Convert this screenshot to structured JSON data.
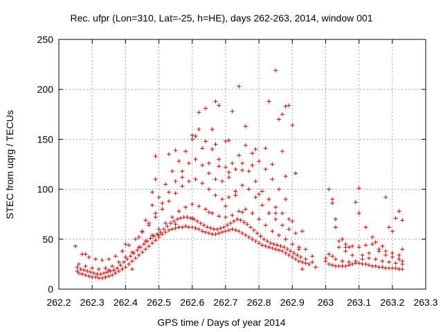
{
  "chart_data": {
    "type": "scatter",
    "title": "Rec. ufpr (Lon=310, Lat=-25, h=HE), days 262-263, 2014, window 001",
    "xlabel": "GPS time / Days of year 2014",
    "ylabel": "STEC from uqrg / TECUs",
    "xlim": [
      262.2,
      263.3
    ],
    "ylim": [
      0,
      250
    ],
    "xticks": [
      "262.2",
      "262.3",
      "262.4",
      "262.5",
      "262.6",
      "262.7",
      "262.8",
      "262.9",
      "263",
      "263.1",
      "263.2",
      "263.3"
    ],
    "yticks": [
      "0",
      "50",
      "100",
      "150",
      "200",
      "250"
    ],
    "grid": true,
    "marker": "+",
    "color": "#cc0000",
    "points": [
      [
        262.255,
        18
      ],
      [
        262.26,
        16
      ],
      [
        262.27,
        15
      ],
      [
        262.28,
        14
      ],
      [
        262.29,
        13
      ],
      [
        262.3,
        12
      ],
      [
        262.31,
        12
      ],
      [
        262.32,
        11
      ],
      [
        262.33,
        11
      ],
      [
        262.34,
        12
      ],
      [
        262.35,
        13
      ],
      [
        262.36,
        14
      ],
      [
        262.37,
        16
      ],
      [
        262.38,
        18
      ],
      [
        262.39,
        20
      ],
      [
        262.4,
        22
      ],
      [
        262.41,
        25
      ],
      [
        262.42,
        28
      ],
      [
        262.43,
        31
      ],
      [
        262.44,
        34
      ],
      [
        262.45,
        37
      ],
      [
        262.46,
        40
      ],
      [
        262.47,
        43
      ],
      [
        262.48,
        46
      ],
      [
        262.49,
        49
      ],
      [
        262.5,
        52
      ],
      [
        262.51,
        55
      ],
      [
        262.52,
        57
      ],
      [
        262.53,
        59
      ],
      [
        262.54,
        60
      ],
      [
        262.55,
        61
      ],
      [
        262.56,
        62
      ],
      [
        262.57,
        62
      ],
      [
        262.58,
        63
      ],
      [
        262.59,
        62
      ],
      [
        262.6,
        62
      ],
      [
        262.61,
        61
      ],
      [
        262.62,
        60
      ],
      [
        262.63,
        58
      ],
      [
        262.64,
        57
      ],
      [
        262.65,
        56
      ],
      [
        262.66,
        55
      ],
      [
        262.67,
        55
      ],
      [
        262.68,
        56
      ],
      [
        262.69,
        57
      ],
      [
        262.7,
        58
      ],
      [
        262.71,
        59
      ],
      [
        262.72,
        60
      ],
      [
        262.73,
        59
      ],
      [
        262.74,
        58
      ],
      [
        262.75,
        56
      ],
      [
        262.76,
        54
      ],
      [
        262.77,
        52
      ],
      [
        262.78,
        50
      ],
      [
        262.79,
        48
      ],
      [
        262.8,
        46
      ],
      [
        262.81,
        44
      ],
      [
        262.82,
        43
      ],
      [
        262.83,
        42
      ],
      [
        262.84,
        41
      ],
      [
        262.85,
        40
      ],
      [
        262.86,
        39
      ],
      [
        262.87,
        38
      ],
      [
        262.88,
        36
      ],
      [
        262.89,
        34
      ],
      [
        262.9,
        32
      ],
      [
        262.91,
        30
      ],
      [
        262.92,
        28
      ],
      [
        262.93,
        27
      ],
      [
        262.94,
        26
      ],
      [
        262.95,
        25
      ],
      [
        262.255,
        22
      ],
      [
        262.265,
        20
      ],
      [
        262.275,
        19
      ],
      [
        262.285,
        18
      ],
      [
        262.295,
        17
      ],
      [
        262.305,
        16
      ],
      [
        262.315,
        15
      ],
      [
        262.325,
        15
      ],
      [
        262.335,
        16
      ],
      [
        262.345,
        17
      ],
      [
        262.355,
        18
      ],
      [
        262.365,
        19
      ],
      [
        262.375,
        21
      ],
      [
        262.385,
        24
      ],
      [
        262.395,
        27
      ],
      [
        262.405,
        30
      ],
      [
        262.415,
        33
      ],
      [
        262.425,
        36
      ],
      [
        262.435,
        39
      ],
      [
        262.445,
        42
      ],
      [
        262.455,
        45
      ],
      [
        262.465,
        48
      ],
      [
        262.475,
        51
      ],
      [
        262.485,
        53
      ],
      [
        262.495,
        55
      ],
      [
        262.505,
        57
      ],
      [
        262.515,
        60
      ],
      [
        262.525,
        63
      ],
      [
        262.535,
        66
      ],
      [
        262.545,
        68
      ],
      [
        262.555,
        70
      ],
      [
        262.565,
        71
      ],
      [
        262.575,
        72
      ],
      [
        262.585,
        72
      ],
      [
        262.595,
        71
      ],
      [
        262.605,
        70
      ],
      [
        262.615,
        68
      ],
      [
        262.625,
        66
      ],
      [
        262.635,
        64
      ],
      [
        262.645,
        62
      ],
      [
        262.655,
        61
      ],
      [
        262.665,
        60
      ],
      [
        262.675,
        60
      ],
      [
        262.685,
        61
      ],
      [
        262.695,
        62
      ],
      [
        262.705,
        64
      ],
      [
        262.715,
        66
      ],
      [
        262.725,
        68
      ],
      [
        262.735,
        70
      ],
      [
        262.745,
        69
      ],
      [
        262.755,
        67
      ],
      [
        262.765,
        65
      ],
      [
        262.775,
        62
      ],
      [
        262.785,
        59
      ],
      [
        262.795,
        56
      ],
      [
        262.805,
        53
      ],
      [
        262.815,
        50
      ],
      [
        262.825,
        48
      ],
      [
        262.835,
        46
      ],
      [
        262.845,
        45
      ],
      [
        262.855,
        44
      ],
      [
        262.865,
        43
      ],
      [
        262.875,
        42
      ],
      [
        262.885,
        40
      ],
      [
        262.895,
        38
      ],
      [
        262.905,
        36
      ],
      [
        262.915,
        34
      ],
      [
        262.925,
        32
      ],
      [
        262.26,
        25
      ],
      [
        262.28,
        23
      ],
      [
        262.3,
        21
      ],
      [
        262.32,
        20
      ],
      [
        262.34,
        21
      ],
      [
        262.36,
        23
      ],
      [
        262.38,
        27
      ],
      [
        262.4,
        32
      ],
      [
        262.42,
        37
      ],
      [
        262.44,
        42
      ],
      [
        262.46,
        48
      ],
      [
        262.48,
        54
      ],
      [
        262.5,
        60
      ],
      [
        262.52,
        66
      ],
      [
        262.54,
        72
      ],
      [
        262.56,
        78
      ],
      [
        262.58,
        82
      ],
      [
        262.6,
        85
      ],
      [
        262.62,
        83
      ],
      [
        262.64,
        80
      ],
      [
        262.66,
        76
      ],
      [
        262.68,
        73
      ],
      [
        262.7,
        72
      ],
      [
        262.72,
        74
      ],
      [
        262.74,
        78
      ],
      [
        262.76,
        80
      ],
      [
        262.78,
        76
      ],
      [
        262.8,
        70
      ],
      [
        262.82,
        64
      ],
      [
        262.84,
        58
      ],
      [
        262.86,
        54
      ],
      [
        262.88,
        50
      ],
      [
        262.9,
        45
      ],
      [
        262.92,
        42
      ],
      [
        262.94,
        40
      ],
      [
        262.27,
        35
      ],
      [
        262.29,
        32
      ],
      [
        262.31,
        30
      ],
      [
        262.33,
        29
      ],
      [
        262.35,
        30
      ],
      [
        262.37,
        33
      ],
      [
        262.39,
        38
      ],
      [
        262.41,
        44
      ],
      [
        262.43,
        50
      ],
      [
        262.45,
        57
      ],
      [
        262.47,
        64
      ],
      [
        262.49,
        72
      ],
      [
        262.51,
        80
      ],
      [
        262.53,
        88
      ],
      [
        262.55,
        96
      ],
      [
        262.57,
        103
      ],
      [
        262.59,
        108
      ],
      [
        262.61,
        110
      ],
      [
        262.63,
        106
      ],
      [
        262.65,
        100
      ],
      [
        262.67,
        94
      ],
      [
        262.69,
        90
      ],
      [
        262.71,
        92
      ],
      [
        262.73,
        98
      ],
      [
        262.75,
        104
      ],
      [
        262.77,
        100
      ],
      [
        262.79,
        92
      ],
      [
        262.81,
        84
      ],
      [
        262.83,
        76
      ],
      [
        262.85,
        70
      ],
      [
        262.87,
        64
      ],
      [
        262.89,
        60
      ],
      [
        262.91,
        56
      ],
      [
        262.45,
        58
      ],
      [
        262.47,
        66
      ],
      [
        262.49,
        76
      ],
      [
        262.51,
        86
      ],
      [
        262.53,
        97
      ],
      [
        262.55,
        108
      ],
      [
        262.57,
        118
      ],
      [
        262.59,
        126
      ],
      [
        262.61,
        130
      ],
      [
        262.63,
        124
      ],
      [
        262.65,
        116
      ],
      [
        262.67,
        110
      ],
      [
        262.69,
        108
      ],
      [
        262.71,
        112
      ],
      [
        262.73,
        120
      ],
      [
        262.75,
        126
      ],
      [
        262.77,
        118
      ],
      [
        262.79,
        108
      ],
      [
        262.81,
        98
      ],
      [
        262.83,
        90
      ],
      [
        262.85,
        82
      ],
      [
        262.87,
        76
      ],
      [
        262.89,
        70
      ],
      [
        262.48,
        84
      ],
      [
        262.5,
        92
      ],
      [
        262.52,
        105
      ],
      [
        262.54,
        118
      ],
      [
        262.56,
        128
      ],
      [
        262.58,
        138
      ],
      [
        262.6,
        150
      ],
      [
        262.62,
        160
      ],
      [
        262.64,
        148
      ],
      [
        262.66,
        140
      ],
      [
        262.68,
        130
      ],
      [
        262.7,
        122
      ],
      [
        262.72,
        126
      ],
      [
        262.74,
        134
      ],
      [
        262.76,
        144
      ],
      [
        262.78,
        136
      ],
      [
        262.8,
        128
      ],
      [
        262.82,
        120
      ],
      [
        262.84,
        110
      ],
      [
        262.86,
        100
      ],
      [
        262.88,
        90
      ],
      [
        262.48,
        97
      ],
      [
        262.49,
        110
      ],
      [
        262.49,
        133
      ],
      [
        262.53,
        135
      ],
      [
        262.55,
        139
      ],
      [
        262.57,
        112
      ],
      [
        262.61,
        153
      ],
      [
        262.62,
        177
      ],
      [
        262.64,
        181
      ],
      [
        262.66,
        160
      ],
      [
        262.67,
        188
      ],
      [
        262.68,
        184
      ],
      [
        262.71,
        149
      ],
      [
        262.72,
        178
      ],
      [
        262.74,
        203
      ],
      [
        262.76,
        163
      ],
      [
        262.79,
        140
      ],
      [
        262.83,
        188
      ],
      [
        262.85,
        219
      ],
      [
        262.86,
        170
      ],
      [
        262.87,
        175
      ],
      [
        262.88,
        183
      ],
      [
        262.89,
        184
      ],
      [
        262.9,
        164
      ],
      [
        262.82,
        141
      ],
      [
        262.84,
        125
      ],
      [
        262.87,
        138
      ],
      [
        262.91,
        116
      ],
      [
        262.88,
        113
      ],
      [
        262.6,
        154
      ],
      [
        262.63,
        141
      ],
      [
        262.67,
        145
      ],
      [
        262.7,
        148
      ],
      [
        262.65,
        126
      ],
      [
        262.68,
        123
      ],
      [
        262.71,
        117
      ],
      [
        262.73,
        94
      ],
      [
        262.75,
        119
      ],
      [
        262.78,
        124
      ],
      [
        262.25,
        43
      ],
      [
        262.28,
        35
      ],
      [
        262.35,
        19
      ],
      [
        262.4,
        45
      ],
      [
        262.42,
        20
      ],
      [
        262.44,
        52
      ],
      [
        262.46,
        69
      ],
      [
        262.5,
        54
      ],
      [
        262.55,
        65
      ],
      [
        262.6,
        71
      ],
      [
        262.65,
        77
      ],
      [
        262.7,
        83
      ],
      [
        262.75,
        77
      ],
      [
        262.8,
        95
      ],
      [
        262.85,
        76
      ],
      [
        262.9,
        68
      ],
      [
        262.93,
        58
      ],
      [
        262.92,
        40
      ],
      [
        262.94,
        30
      ],
      [
        262.96,
        27
      ],
      [
        262.97,
        22
      ],
      [
        262.96,
        33
      ],
      [
        262.93,
        20
      ],
      [
        263.01,
        100
      ],
      [
        263.02,
        90
      ],
      [
        263.02,
        86
      ],
      [
        263.03,
        70
      ],
      [
        263.03,
        62
      ],
      [
        263.05,
        50
      ],
      [
        263.06,
        45
      ],
      [
        263.07,
        42
      ],
      [
        263.09,
        87
      ],
      [
        263.1,
        101
      ],
      [
        263.1,
        76
      ],
      [
        263.12,
        62
      ],
      [
        263.14,
        52
      ],
      [
        263.15,
        47
      ],
      [
        263.17,
        43
      ],
      [
        263.18,
        92
      ],
      [
        263.19,
        62
      ],
      [
        263.2,
        58
      ],
      [
        263.21,
        71
      ],
      [
        263.22,
        78
      ],
      [
        263.23,
        69
      ],
      [
        263.23,
        40
      ],
      [
        263.0,
        31
      ],
      [
        263.02,
        33
      ],
      [
        263.04,
        42
      ],
      [
        263.06,
        42
      ],
      [
        263.08,
        43
      ],
      [
        263.1,
        42
      ],
      [
        263.12,
        44
      ],
      [
        263.14,
        45
      ],
      [
        263.16,
        40
      ],
      [
        263.18,
        38
      ],
      [
        263.2,
        36
      ],
      [
        263.22,
        34
      ],
      [
        263.0,
        28
      ],
      [
        263.01,
        25
      ],
      [
        263.02,
        24
      ],
      [
        263.03,
        23
      ],
      [
        263.04,
        23
      ],
      [
        263.05,
        23
      ],
      [
        263.06,
        23
      ],
      [
        263.07,
        24
      ],
      [
        263.08,
        25
      ],
      [
        263.09,
        26
      ],
      [
        263.1,
        26
      ],
      [
        263.11,
        25
      ],
      [
        263.12,
        25
      ],
      [
        263.13,
        24
      ],
      [
        263.14,
        23
      ],
      [
        263.15,
        23
      ],
      [
        263.16,
        22
      ],
      [
        263.17,
        22
      ],
      [
        263.18,
        21
      ],
      [
        263.19,
        21
      ],
      [
        263.2,
        21
      ],
      [
        263.21,
        21
      ],
      [
        263.22,
        20
      ],
      [
        263.23,
        20
      ],
      [
        263.01,
        35
      ],
      [
        263.03,
        30
      ],
      [
        263.05,
        28
      ],
      [
        263.07,
        27
      ],
      [
        263.09,
        28
      ],
      [
        263.11,
        30
      ],
      [
        263.13,
        31
      ],
      [
        263.15,
        30
      ],
      [
        263.17,
        28
      ],
      [
        263.19,
        27
      ],
      [
        263.21,
        26
      ],
      [
        263.23,
        25
      ],
      [
        263.04,
        48
      ],
      [
        263.06,
        38
      ],
      [
        263.08,
        34
      ],
      [
        263.11,
        34
      ],
      [
        263.13,
        36
      ],
      [
        263.16,
        38
      ],
      [
        263.18,
        34
      ],
      [
        263.2,
        32
      ],
      [
        263.22,
        30
      ],
      [
        263.23,
        28
      ]
    ]
  }
}
